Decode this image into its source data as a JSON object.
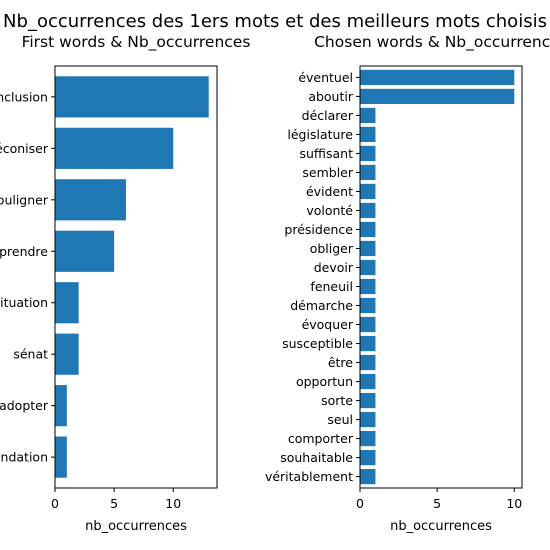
{
  "figure": {
    "suptitle": "Nb_occurrences des 1ers mots et des meilleurs mots choisis",
    "suptitle_color": "#b22222"
  },
  "chart_data": [
    {
      "type": "bar",
      "orientation": "horizontal",
      "title": "First words & Nb_occurrences",
      "xlabel": "nb_occurrences",
      "ylabel": "",
      "xlim": [
        0,
        13.7
      ],
      "xticks": [
        0,
        5,
        10
      ],
      "categories": [
        "conclusion",
        "préconiser",
        "souligner",
        "comprendre",
        "situation",
        "sénat",
        "adopter",
        "recommandation"
      ],
      "values": [
        13,
        10,
        6,
        5,
        2,
        2,
        1,
        1
      ],
      "bar_color": "#1f77b4",
      "grid": false
    },
    {
      "type": "bar",
      "orientation": "horizontal",
      "title": "Chosen words & Nb_occurrences",
      "xlabel": "nb_occurrences",
      "ylabel": "",
      "xlim": [
        0,
        10.5
      ],
      "xticks": [
        0,
        5,
        10
      ],
      "categories": [
        "éventuel",
        "aboutir",
        "déclarer",
        "législature",
        "suffisant",
        "sembler",
        "évident",
        "volonté",
        "présidence",
        "obliger",
        "devoir",
        "feneuil",
        "démarche",
        "évoquer",
        "susceptible",
        "être",
        "opportun",
        "sorte",
        "seul",
        "comporter",
        "souhaitable",
        "véritablement"
      ],
      "values": [
        10,
        10,
        1,
        1,
        1,
        1,
        1,
        1,
        1,
        1,
        1,
        1,
        1,
        1,
        1,
        1,
        1,
        1,
        1,
        1,
        1,
        1
      ],
      "bar_color": "#1f77b4",
      "grid": false
    }
  ]
}
